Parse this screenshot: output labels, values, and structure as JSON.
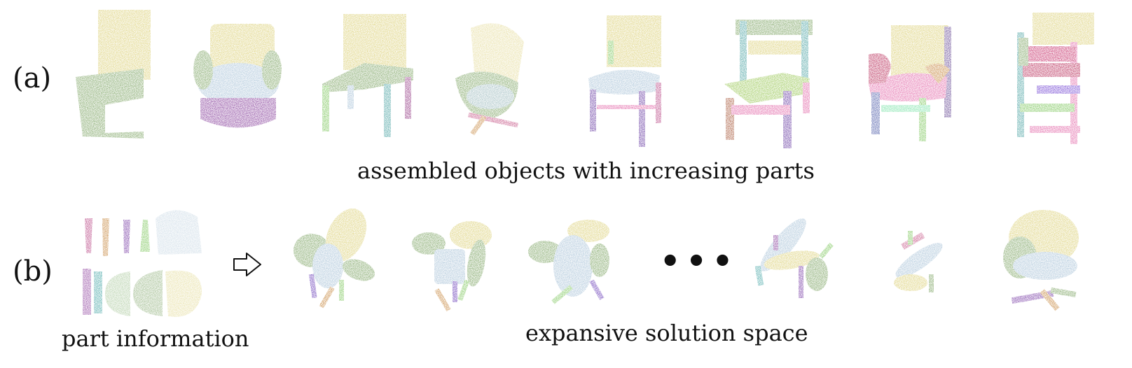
{
  "panel_a": {
    "label": "(a)",
    "caption": "assembled objects with increasing parts"
  },
  "panel_b": {
    "label": "(b)",
    "left_caption": "part information",
    "right_caption": "expansive solution space",
    "ellipsis": "•••"
  },
  "icons": {
    "arrow": "hollow-right-arrow-icon"
  },
  "colors": {
    "yellow": "#d8cb68",
    "green": "#6f9a52",
    "blue": "#9fbcd3",
    "purple": "#6b2a8c",
    "magenta": "#b2367a",
    "orange": "#c07a2a",
    "teal": "#3a9a9a",
    "lime": "#6fc04a",
    "pink": "#e05aa0",
    "red": "#b21a4a"
  }
}
